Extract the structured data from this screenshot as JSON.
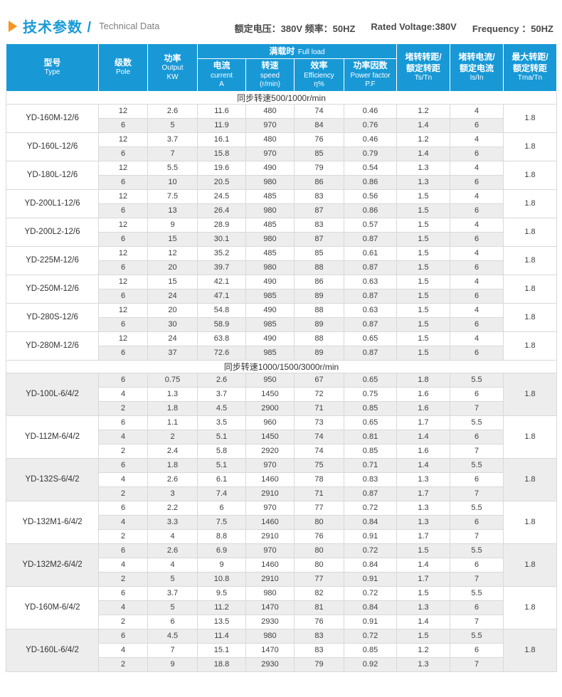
{
  "header": {
    "title_zh": "技术参数 /",
    "title_en": "Technical Data",
    "rating_zh": "额定电压：380V  频率：50HZ",
    "rating_en_voltage": "Rated Voltage:380V",
    "rating_en_frequency": "Frequency ：50HZ"
  },
  "colors": {
    "header_blue": "#1899d6",
    "title_blue": "#1a9ad6",
    "accent_orange": "#f7941d",
    "row_shade": "#ededed",
    "border_gray": "#d9d9d9",
    "text_dark": "#404040"
  },
  "table": {
    "full_load": {
      "zh": "满载时",
      "en": "Full load"
    },
    "columns": [
      {
        "zh": "型号",
        "en": "Type"
      },
      {
        "zh": "级数",
        "en": "Pole"
      },
      {
        "zh": "功率",
        "en": "Output",
        "unit": "KW"
      },
      {
        "zh": "电流",
        "en": "current",
        "unit": "A"
      },
      {
        "zh": "转速",
        "en": "speed",
        "unit": "(r/min)"
      },
      {
        "zh": "效率",
        "en": "Efficiency",
        "unit": "η%"
      },
      {
        "zh": "功率因数",
        "en": "Power factor",
        "unit": "P.F"
      },
      {
        "zh": "堵转转距/",
        "zh2": "额定转距",
        "en": "Ts/Tn"
      },
      {
        "zh": "堵转电流/",
        "zh2": "额定电流",
        "en": "Is/In"
      },
      {
        "zh": "最大转距/",
        "zh2": "额定转距",
        "en": "Tma/Tn"
      }
    ],
    "sections": [
      {
        "title": "同步转速500/1000r/min",
        "groups": [
          {
            "model": "YD-160M-12/6",
            "tma": "1.8",
            "rows": [
              [
                "12",
                "2.6",
                "11.6",
                "480",
                "74",
                "0.46",
                "1.2",
                "4"
              ],
              [
                "6",
                "5",
                "11.9",
                "970",
                "84",
                "0.76",
                "1.4",
                "6"
              ]
            ]
          },
          {
            "model": "YD-160L-12/6",
            "tma": "1.8",
            "rows": [
              [
                "12",
                "3.7",
                "16.1",
                "480",
                "76",
                "0.46",
                "1.2",
                "4"
              ],
              [
                "6",
                "7",
                "15.8",
                "970",
                "85",
                "0.79",
                "1.4",
                "6"
              ]
            ]
          },
          {
            "model": "YD-180L-12/6",
            "tma": "1.8",
            "rows": [
              [
                "12",
                "5.5",
                "19.6",
                "490",
                "79",
                "0.54",
                "1.3",
                "4"
              ],
              [
                "6",
                "10",
                "20.5",
                "980",
                "86",
                "0.86",
                "1.3",
                "6"
              ]
            ]
          },
          {
            "model": "YD-200L1-12/6",
            "tma": "1.8",
            "rows": [
              [
                "12",
                "7.5",
                "24.5",
                "485",
                "83",
                "0.56",
                "1.5",
                "4"
              ],
              [
                "6",
                "13",
                "26.4",
                "980",
                "87",
                "0.86",
                "1.5",
                "6"
              ]
            ]
          },
          {
            "model": "YD-200L2-12/6",
            "tma": "1.8",
            "rows": [
              [
                "12",
                "9",
                "28.9",
                "485",
                "83",
                "0.57",
                "1.5",
                "4"
              ],
              [
                "6",
                "15",
                "30.1",
                "980",
                "87",
                "0.87",
                "1.5",
                "6"
              ]
            ]
          },
          {
            "model": "YD-225M-12/6",
            "tma": "1.8",
            "rows": [
              [
                "12",
                "12",
                "35.2",
                "485",
                "85",
                "0.61",
                "1.5",
                "4"
              ],
              [
                "6",
                "20",
                "39.7",
                "980",
                "88",
                "0.87",
                "1.5",
                "6"
              ]
            ]
          },
          {
            "model": "YD-250M-12/6",
            "tma": "1.8",
            "rows": [
              [
                "12",
                "15",
                "42.1",
                "490",
                "86",
                "0.63",
                "1.5",
                "4"
              ],
              [
                "6",
                "24",
                "47.1",
                "985",
                "89",
                "0.87",
                "1.5",
                "6"
              ]
            ]
          },
          {
            "model": "YD-280S-12/6",
            "tma": "1.8",
            "rows": [
              [
                "12",
                "20",
                "54.8",
                "490",
                "88",
                "0.63",
                "1.5",
                "4"
              ],
              [
                "6",
                "30",
                "58.9",
                "985",
                "89",
                "0.87",
                "1.5",
                "6"
              ]
            ]
          },
          {
            "model": "YD-280M-12/6",
            "tma": "1.8",
            "rows": [
              [
                "12",
                "24",
                "63.8",
                "490",
                "88",
                "0.65",
                "1.5",
                "4"
              ],
              [
                "6",
                "37",
                "72.6",
                "985",
                "89",
                "0.87",
                "1.5",
                "6"
              ]
            ]
          }
        ]
      },
      {
        "title": "同步转速1000/1500/3000r/min",
        "groups": [
          {
            "model": "YD-100L-6/4/2",
            "tma": "1.8",
            "rows": [
              [
                "6",
                "0.75",
                "2.6",
                "950",
                "67",
                "0.65",
                "1.8",
                "5.5"
              ],
              [
                "4",
                "1.3",
                "3.7",
                "1450",
                "72",
                "0.75",
                "1.6",
                "6"
              ],
              [
                "2",
                "1.8",
                "4.5",
                "2900",
                "71",
                "0.85",
                "1.6",
                "7"
              ]
            ]
          },
          {
            "model": "YD-112M-6/4/2",
            "tma": "1.8",
            "rows": [
              [
                "6",
                "1.1",
                "3.5",
                "960",
                "73",
                "0.65",
                "1.7",
                "5.5"
              ],
              [
                "4",
                "2",
                "5.1",
                "1450",
                "74",
                "0.81",
                "1.4",
                "6"
              ],
              [
                "2",
                "2.4",
                "5.8",
                "2920",
                "74",
                "0.85",
                "1.6",
                "7"
              ]
            ]
          },
          {
            "model": "YD-132S-6/4/2",
            "tma": "1.8",
            "rows": [
              [
                "6",
                "1.8",
                "5.1",
                "970",
                "75",
                "0.71",
                "1.4",
                "5.5"
              ],
              [
                "4",
                "2.6",
                "6.1",
                "1460",
                "78",
                "0.83",
                "1.3",
                "6"
              ],
              [
                "2",
                "3",
                "7.4",
                "2910",
                "71",
                "0.87",
                "1.7",
                "7"
              ]
            ]
          },
          {
            "model": "YD-132M1-6/4/2",
            "tma": "1.8",
            "rows": [
              [
                "6",
                "2.2",
                "6",
                "970",
                "77",
                "0.72",
                "1.3",
                "5.5"
              ],
              [
                "4",
                "3.3",
                "7.5",
                "1460",
                "80",
                "0.84",
                "1.3",
                "6"
              ],
              [
                "2",
                "4",
                "8.8",
                "2910",
                "76",
                "0.91",
                "1.7",
                "7"
              ]
            ]
          },
          {
            "model": "YD-132M2-6/4/2",
            "tma": "1.8",
            "rows": [
              [
                "6",
                "2.6",
                "6.9",
                "970",
                "80",
                "0.72",
                "1.5",
                "5.5"
              ],
              [
                "4",
                "4",
                "9",
                "1460",
                "80",
                "0.84",
                "1.4",
                "6"
              ],
              [
                "2",
                "5",
                "10.8",
                "2910",
                "77",
                "0.91",
                "1.7",
                "7"
              ]
            ]
          },
          {
            "model": "YD-160M-6/4/2",
            "tma": "1.8",
            "rows": [
              [
                "6",
                "3.7",
                "9.5",
                "980",
                "82",
                "0.72",
                "1.5",
                "5.5"
              ],
              [
                "4",
                "5",
                "11.2",
                "1470",
                "81",
                "0.84",
                "1.3",
                "6"
              ],
              [
                "2",
                "6",
                "13.5",
                "2930",
                "76",
                "0.91",
                "1.4",
                "7"
              ]
            ]
          },
          {
            "model": "YD-160L-6/4/2",
            "tma": "1.8",
            "rows": [
              [
                "6",
                "4.5",
                "11.4",
                "980",
                "83",
                "0.72",
                "1.5",
                "5.5"
              ],
              [
                "4",
                "7",
                "15.1",
                "1470",
                "83",
                "0.85",
                "1.2",
                "6"
              ],
              [
                "2",
                "9",
                "18.8",
                "2930",
                "79",
                "0.92",
                "1.3",
                "7"
              ]
            ]
          }
        ]
      }
    ]
  }
}
